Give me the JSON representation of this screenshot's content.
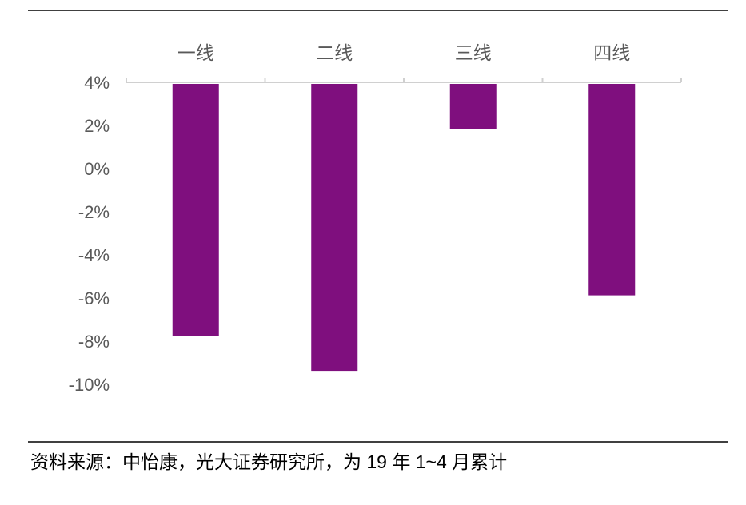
{
  "chart_data": {
    "type": "bar",
    "categories": [
      "一线",
      "二线",
      "三线",
      "四线"
    ],
    "values": [
      -7.7,
      -9.3,
      1.9,
      -5.8
    ],
    "color": "#7f0f7e",
    "ylim": [
      -10,
      4
    ],
    "yticks": [
      {
        "value": 4,
        "label": "4%"
      },
      {
        "value": 2,
        "label": "2%"
      },
      {
        "value": 0,
        "label": "0%"
      },
      {
        "value": -2,
        "label": "-2%"
      },
      {
        "value": -4,
        "label": "-4%"
      },
      {
        "value": -6,
        "label": "-6%"
      },
      {
        "value": -8,
        "label": "-8%"
      },
      {
        "value": -10,
        "label": "-10%"
      }
    ],
    "x_axis_position": "top",
    "grid": false
  },
  "source": "资料来源：中怡康，光大证券研究所，为 19 年 1~4 月累计"
}
